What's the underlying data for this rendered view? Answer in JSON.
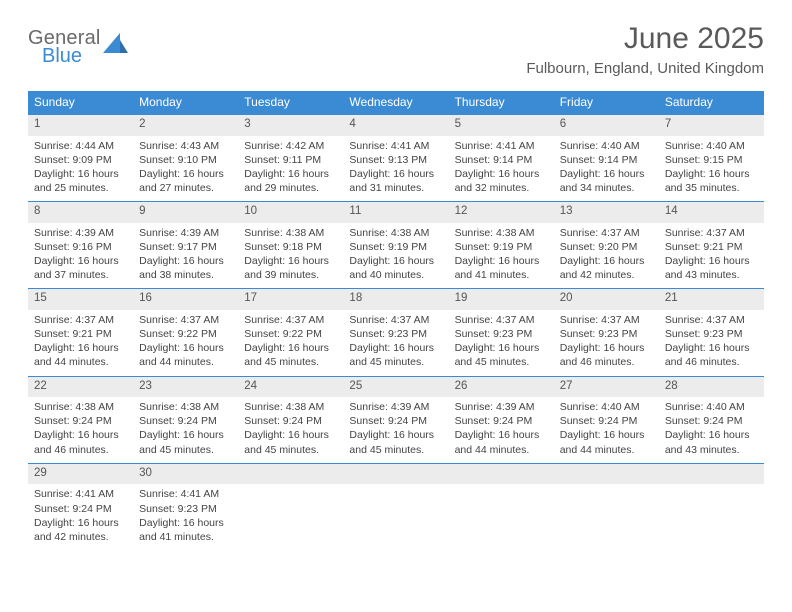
{
  "logo": {
    "line1": "General",
    "line2": "Blue"
  },
  "title": "June 2025",
  "location": "Fulbourn, England, United Kingdom",
  "header_bg": "#3b8bd4",
  "daynames": [
    "Sunday",
    "Monday",
    "Tuesday",
    "Wednesday",
    "Thursday",
    "Friday",
    "Saturday"
  ],
  "weeks": [
    [
      {
        "n": "1",
        "sr": "4:44 AM",
        "ss": "9:09 PM",
        "dl": "16 hours and 25 minutes."
      },
      {
        "n": "2",
        "sr": "4:43 AM",
        "ss": "9:10 PM",
        "dl": "16 hours and 27 minutes."
      },
      {
        "n": "3",
        "sr": "4:42 AM",
        "ss": "9:11 PM",
        "dl": "16 hours and 29 minutes."
      },
      {
        "n": "4",
        "sr": "4:41 AM",
        "ss": "9:13 PM",
        "dl": "16 hours and 31 minutes."
      },
      {
        "n": "5",
        "sr": "4:41 AM",
        "ss": "9:14 PM",
        "dl": "16 hours and 32 minutes."
      },
      {
        "n": "6",
        "sr": "4:40 AM",
        "ss": "9:14 PM",
        "dl": "16 hours and 34 minutes."
      },
      {
        "n": "7",
        "sr": "4:40 AM",
        "ss": "9:15 PM",
        "dl": "16 hours and 35 minutes."
      }
    ],
    [
      {
        "n": "8",
        "sr": "4:39 AM",
        "ss": "9:16 PM",
        "dl": "16 hours and 37 minutes."
      },
      {
        "n": "9",
        "sr": "4:39 AM",
        "ss": "9:17 PM",
        "dl": "16 hours and 38 minutes."
      },
      {
        "n": "10",
        "sr": "4:38 AM",
        "ss": "9:18 PM",
        "dl": "16 hours and 39 minutes."
      },
      {
        "n": "11",
        "sr": "4:38 AM",
        "ss": "9:19 PM",
        "dl": "16 hours and 40 minutes."
      },
      {
        "n": "12",
        "sr": "4:38 AM",
        "ss": "9:19 PM",
        "dl": "16 hours and 41 minutes."
      },
      {
        "n": "13",
        "sr": "4:37 AM",
        "ss": "9:20 PM",
        "dl": "16 hours and 42 minutes."
      },
      {
        "n": "14",
        "sr": "4:37 AM",
        "ss": "9:21 PM",
        "dl": "16 hours and 43 minutes."
      }
    ],
    [
      {
        "n": "15",
        "sr": "4:37 AM",
        "ss": "9:21 PM",
        "dl": "16 hours and 44 minutes."
      },
      {
        "n": "16",
        "sr": "4:37 AM",
        "ss": "9:22 PM",
        "dl": "16 hours and 44 minutes."
      },
      {
        "n": "17",
        "sr": "4:37 AM",
        "ss": "9:22 PM",
        "dl": "16 hours and 45 minutes."
      },
      {
        "n": "18",
        "sr": "4:37 AM",
        "ss": "9:23 PM",
        "dl": "16 hours and 45 minutes."
      },
      {
        "n": "19",
        "sr": "4:37 AM",
        "ss": "9:23 PM",
        "dl": "16 hours and 45 minutes."
      },
      {
        "n": "20",
        "sr": "4:37 AM",
        "ss": "9:23 PM",
        "dl": "16 hours and 46 minutes."
      },
      {
        "n": "21",
        "sr": "4:37 AM",
        "ss": "9:23 PM",
        "dl": "16 hours and 46 minutes."
      }
    ],
    [
      {
        "n": "22",
        "sr": "4:38 AM",
        "ss": "9:24 PM",
        "dl": "16 hours and 46 minutes."
      },
      {
        "n": "23",
        "sr": "4:38 AM",
        "ss": "9:24 PM",
        "dl": "16 hours and 45 minutes."
      },
      {
        "n": "24",
        "sr": "4:38 AM",
        "ss": "9:24 PM",
        "dl": "16 hours and 45 minutes."
      },
      {
        "n": "25",
        "sr": "4:39 AM",
        "ss": "9:24 PM",
        "dl": "16 hours and 45 minutes."
      },
      {
        "n": "26",
        "sr": "4:39 AM",
        "ss": "9:24 PM",
        "dl": "16 hours and 44 minutes."
      },
      {
        "n": "27",
        "sr": "4:40 AM",
        "ss": "9:24 PM",
        "dl": "16 hours and 44 minutes."
      },
      {
        "n": "28",
        "sr": "4:40 AM",
        "ss": "9:24 PM",
        "dl": "16 hours and 43 minutes."
      }
    ],
    [
      {
        "n": "29",
        "sr": "4:41 AM",
        "ss": "9:24 PM",
        "dl": "16 hours and 42 minutes."
      },
      {
        "n": "30",
        "sr": "4:41 AM",
        "ss": "9:23 PM",
        "dl": "16 hours and 41 minutes."
      },
      null,
      null,
      null,
      null,
      null
    ]
  ],
  "labels": {
    "sunrise": "Sunrise: ",
    "sunset": "Sunset: ",
    "daylight": "Daylight: "
  }
}
